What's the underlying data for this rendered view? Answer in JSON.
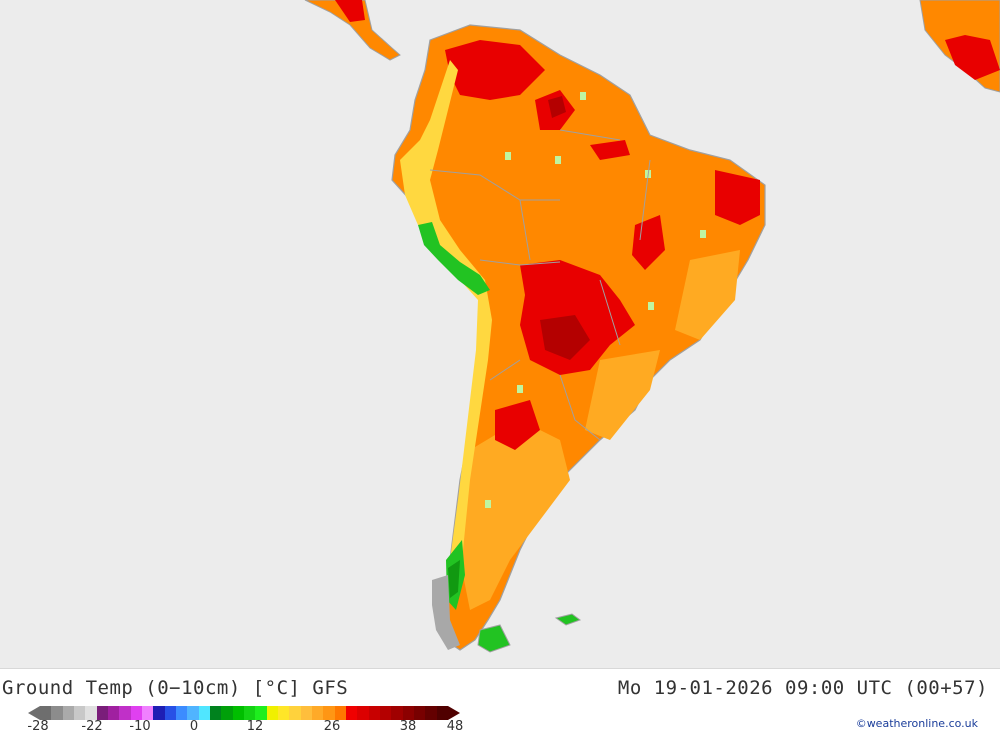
{
  "header": {
    "title": "Ground Temp (0−10cm) [°C] GFS",
    "valid_time": "Mo 19-01-2026 09:00 UTC (00+57)"
  },
  "map": {
    "region": "South America",
    "colors": {
      "ocean": "#ececec",
      "hot_orange": "#ff8800",
      "light_orange": "#ffaa22",
      "red": "#e80000",
      "dark_red": "#b40000",
      "yellow": "#ffd840",
      "green": "#22c322",
      "dark_green": "#119911",
      "pale_green": "#bff5a0",
      "grey_land": "#a8a8a8",
      "border": "#a0a0a0"
    }
  },
  "legend": {
    "colors": [
      "#6e6e6e",
      "#8c8c8c",
      "#aaaaaa",
      "#c8c8c8",
      "#e0e0e0",
      "#7a1e7a",
      "#a020a0",
      "#c030c8",
      "#e040f0",
      "#f080ff",
      "#1e1eb4",
      "#2850e6",
      "#3c8cff",
      "#50b4ff",
      "#50e6ff",
      "#00821e",
      "#00a00a",
      "#00be00",
      "#14d214",
      "#1eee1e",
      "#f0f000",
      "#ffe628",
      "#ffd23c",
      "#ffbe3c",
      "#ffaa28",
      "#ff9614",
      "#ff7800",
      "#f00000",
      "#dc0000",
      "#c80000",
      "#b40000",
      "#a00000",
      "#8c0000",
      "#780000",
      "#640000",
      "#500000"
    ],
    "tick_labels": [
      "-28",
      "-22",
      "-10",
      "0",
      "12",
      "26",
      "38",
      "48"
    ]
  },
  "credit": "©weatheronline.co.uk"
}
